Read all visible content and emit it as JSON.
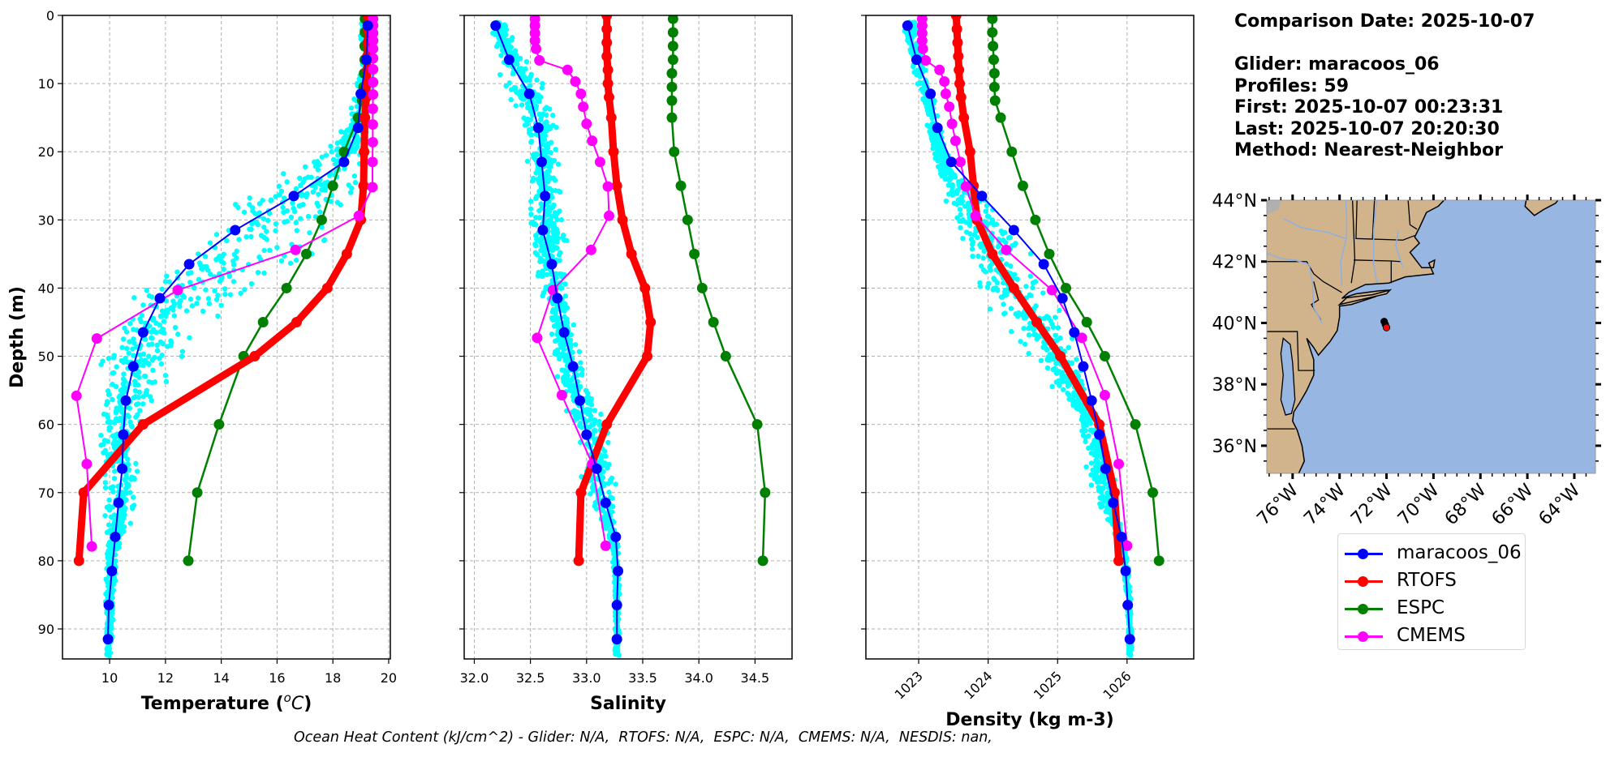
{
  "info": {
    "comparison_date": "Comparison Date: 2025-10-07",
    "glider": "Glider: maracoos_06",
    "profiles": "Profiles: 59",
    "first": "First: 2025-10-07 00:23:31",
    "last": "Last: 2025-10-07 20:20:30",
    "method": "Method: Nearest-Neighbor"
  },
  "footer": "Ocean Heat Content (kJ/cm^2) - Glider: N/A,  RTOFS: N/A,  ESPC: N/A,  CMEMS: N/A,  NESDIS: nan,",
  "legend": [
    {
      "label": "maracoos_06",
      "color": "#0000ff"
    },
    {
      "label": "RTOFS",
      "color": "#ff0000"
    },
    {
      "label": "ESPC",
      "color": "#008000"
    },
    {
      "label": "CMEMS",
      "color": "#ff00ff"
    }
  ],
  "colors": {
    "glider": "#0000ff",
    "glider_scatter": "#00ffff",
    "rtofs": "#ff0000",
    "espc": "#008000",
    "cmems": "#ff00ff",
    "land": "#d2b48c",
    "ocean": "#97b6e1",
    "grid": "#b0b0b0"
  },
  "chart_data": [
    {
      "type": "line",
      "title": "",
      "xlabel": "Temperature (°C)",
      "ylabel": "Depth (m)",
      "xlim": [
        8.31,
        20.06
      ],
      "ylim": [
        94.4,
        0
      ],
      "xticks": [
        10,
        12,
        14,
        16,
        18,
        20
      ],
      "yticks": [
        0,
        10,
        20,
        30,
        40,
        50,
        60,
        70,
        80,
        90
      ],
      "grid": true,
      "series": [
        {
          "name": "maracoos_06",
          "key": "glider",
          "depth": [
            1.5,
            6.5,
            11.5,
            16.5,
            21.5,
            26.5,
            31.5,
            36.5,
            41.5,
            46.5,
            51.5,
            56.5,
            61.5,
            66.5,
            71.5,
            76.5,
            81.5,
            86.5,
            91.5
          ],
          "values": [
            19.25,
            19.2,
            19.0,
            18.9,
            18.4,
            16.6,
            14.5,
            12.85,
            11.8,
            11.2,
            10.85,
            10.58,
            10.49,
            10.45,
            10.32,
            10.2,
            10.08,
            9.97,
            9.94
          ]
        },
        {
          "name": "RTOFS",
          "key": "rtofs",
          "depth": [
            0,
            2,
            4,
            6,
            8,
            10,
            12,
            15,
            20,
            25,
            30,
            35,
            40,
            45,
            50,
            60,
            70,
            80
          ],
          "values": [
            19.25,
            19.25,
            19.25,
            19.24,
            19.24,
            19.23,
            19.2,
            19.15,
            19.12,
            19.1,
            19.0,
            18.5,
            17.8,
            16.7,
            15.2,
            11.2,
            9.07,
            8.9
          ]
        },
        {
          "name": "ESPC",
          "key": "espc",
          "depth": [
            0.5,
            2.5,
            4.5,
            6.5,
            8.5,
            10.5,
            12.5,
            15,
            20,
            25,
            30,
            35,
            40,
            45,
            50,
            60,
            70,
            80
          ],
          "values": [
            19.15,
            19.15,
            19.14,
            19.14,
            19.12,
            19.1,
            19.05,
            18.9,
            18.4,
            18.0,
            17.6,
            17.05,
            16.34,
            15.5,
            14.8,
            13.92,
            13.14,
            12.82
          ]
        },
        {
          "name": "CMEMS",
          "key": "cmems",
          "depth": [
            0.5,
            1.5,
            2.6,
            3.7,
            4.9,
            6.3,
            7.9,
            9.8,
            11.6,
            13.7,
            16,
            18.6,
            21.5,
            25.2,
            29.4,
            34.4,
            40.3,
            47.4,
            55.8,
            65.8,
            77.9
          ],
          "values": [
            19.44,
            19.44,
            19.44,
            19.44,
            19.44,
            19.44,
            19.44,
            19.44,
            19.44,
            19.43,
            19.43,
            19.43,
            19.42,
            19.42,
            18.93,
            16.66,
            12.44,
            9.54,
            8.81,
            9.18,
            9.36
          ]
        }
      ],
      "scatter_band": {
        "depth": [
          3,
          8,
          13,
          18,
          23,
          28,
          33,
          38,
          43,
          48,
          53,
          58,
          63,
          68,
          73,
          78,
          83,
          88,
          93
        ],
        "min": [
          18.9,
          18.9,
          18.6,
          18.0,
          16.0,
          13.5,
          11.8,
          10.6,
          10.0,
          9.6,
          9.4,
          9.3,
          9.4,
          9.6,
          9.7,
          9.8,
          9.8,
          9.8,
          9.8
        ],
        "max": [
          19.5,
          19.5,
          19.5,
          19.4,
          19.3,
          19.2,
          19.0,
          17.0,
          14.5,
          13.0,
          12.5,
          11.5,
          11.2,
          11.2,
          11.1,
          10.4,
          10.3,
          10.2,
          10.1
        ]
      }
    },
    {
      "type": "line",
      "title": "",
      "xlabel": "Salinity",
      "ylabel": "",
      "xlim": [
        31.91,
        34.83
      ],
      "ylim": [
        94.4,
        0
      ],
      "xticks": [
        32.0,
        32.5,
        33.0,
        33.5,
        34.0,
        34.5
      ],
      "xticklabels": [
        "32.0",
        "32.5",
        "33.0",
        "33.5",
        "34.0",
        "34.5"
      ],
      "yticks": [
        0,
        10,
        20,
        30,
        40,
        50,
        60,
        70,
        80,
        90
      ],
      "grid": true,
      "series": [
        {
          "name": "maracoos_06",
          "key": "glider",
          "depth": [
            1.5,
            6.5,
            11.5,
            16.5,
            21.5,
            26.5,
            31.5,
            36.5,
            41.5,
            46.5,
            51.5,
            56.5,
            61.5,
            66.5,
            71.5,
            76.5,
            81.5,
            86.5,
            91.5
          ],
          "values": [
            32.19,
            32.31,
            32.49,
            32.57,
            32.6,
            32.63,
            32.61,
            32.69,
            32.74,
            32.8,
            32.88,
            32.94,
            33.0,
            33.09,
            33.17,
            33.26,
            33.28,
            33.27,
            33.27
          ]
        },
        {
          "name": "RTOFS",
          "key": "rtofs",
          "depth": [
            0,
            2,
            4,
            6,
            8,
            10,
            12,
            15,
            20,
            25,
            30,
            35,
            40,
            45,
            50,
            60,
            70,
            80
          ],
          "values": [
            33.18,
            33.18,
            33.18,
            33.18,
            33.19,
            33.19,
            33.2,
            33.22,
            33.24,
            33.27,
            33.32,
            33.4,
            33.52,
            33.57,
            33.54,
            33.18,
            32.95,
            32.93
          ]
        },
        {
          "name": "ESPC",
          "key": "espc",
          "depth": [
            0.5,
            2.5,
            4.5,
            6.5,
            8.5,
            10.5,
            12.5,
            15,
            20,
            25,
            30,
            35,
            40,
            45,
            50,
            60,
            70,
            80
          ],
          "values": [
            33.77,
            33.77,
            33.77,
            33.77,
            33.76,
            33.76,
            33.76,
            33.76,
            33.78,
            33.84,
            33.9,
            33.96,
            34.03,
            34.13,
            34.24,
            34.52,
            34.59,
            34.57
          ]
        },
        {
          "name": "CMEMS",
          "key": "cmems",
          "depth": [
            0.5,
            1.5,
            2.6,
            3.7,
            4.9,
            6.6,
            8,
            9.7,
            11.5,
            13.4,
            15.9,
            18.4,
            21.5,
            25.1,
            29.4,
            34.4,
            40.3,
            47.3,
            55.7,
            65.8,
            77.8
          ],
          "values": [
            32.54,
            32.54,
            32.54,
            32.54,
            32.55,
            32.58,
            32.83,
            32.9,
            32.95,
            32.97,
            33.0,
            33.05,
            33.12,
            33.19,
            33.2,
            33.04,
            32.7,
            32.56,
            32.78,
            33.05,
            33.17
          ]
        }
      ],
      "scatter_band": {
        "depth": [
          3,
          8,
          13,
          18,
          23,
          28,
          33,
          38,
          43,
          48,
          53,
          58,
          63,
          68,
          73,
          78,
          83,
          88,
          93
        ],
        "min": [
          32.12,
          32.15,
          32.3,
          32.4,
          32.45,
          32.45,
          32.45,
          32.5,
          32.6,
          32.65,
          32.7,
          32.8,
          32.85,
          32.9,
          33.05,
          33.22,
          33.24,
          33.24,
          33.24
        ],
        "max": [
          32.35,
          32.6,
          32.75,
          32.8,
          32.8,
          32.82,
          32.85,
          32.85,
          32.88,
          32.95,
          33.05,
          33.15,
          33.3,
          33.3,
          33.3,
          33.3,
          33.3,
          33.3,
          33.3
        ]
      }
    },
    {
      "type": "line",
      "title": "",
      "xlabel": "Density (kg m-3)",
      "ylabel": "",
      "xlim": [
        1022.24,
        1026.96
      ],
      "ylim": [
        94.4,
        0
      ],
      "xticks": [
        1023,
        1024,
        1025,
        1026
      ],
      "yticks": [
        0,
        10,
        20,
        30,
        40,
        50,
        60,
        70,
        80,
        90
      ],
      "grid": true,
      "series": [
        {
          "name": "maracoos_06",
          "key": "glider",
          "depth": [
            1.5,
            6.5,
            11.5,
            16.5,
            21.5,
            26.5,
            31.5,
            36.5,
            41.5,
            46.5,
            51.5,
            56.5,
            61.5,
            66.5,
            71.5,
            76.5,
            81.5,
            86.5,
            91.5
          ],
          "values": [
            1022.84,
            1022.97,
            1023.17,
            1023.27,
            1023.47,
            1023.91,
            1024.37,
            1024.8,
            1025.07,
            1025.24,
            1025.37,
            1025.49,
            1025.6,
            1025.69,
            1025.8,
            1025.92,
            1025.98,
            1026.01,
            1026.04
          ]
        },
        {
          "name": "RTOFS",
          "key": "rtofs",
          "depth": [
            0,
            2,
            4,
            6,
            8,
            10,
            12,
            15,
            20,
            25,
            30,
            35,
            40,
            45,
            50,
            60,
            70,
            80
          ],
          "values": [
            1023.54,
            1023.55,
            1023.56,
            1023.57,
            1023.58,
            1023.59,
            1023.61,
            1023.65,
            1023.74,
            1023.79,
            1023.84,
            1024.06,
            1024.37,
            1024.7,
            1025.04,
            1025.6,
            1025.82,
            1025.88
          ]
        },
        {
          "name": "ESPC",
          "key": "espc",
          "depth": [
            0.5,
            2.5,
            4.5,
            6.5,
            8.5,
            10.5,
            12.5,
            15,
            20,
            25,
            30,
            35,
            40,
            45,
            50,
            60,
            70,
            80
          ],
          "values": [
            1024.06,
            1024.06,
            1024.07,
            1024.08,
            1024.09,
            1024.09,
            1024.1,
            1024.18,
            1024.34,
            1024.5,
            1024.68,
            1024.88,
            1025.12,
            1025.42,
            1025.68,
            1026.12,
            1026.37,
            1026.46
          ]
        },
        {
          "name": "CMEMS",
          "key": "cmems",
          "depth": [
            0.5,
            1.5,
            2.6,
            3.7,
            4.9,
            6.6,
            8,
            9.7,
            11.5,
            13.4,
            15.9,
            18.4,
            21.5,
            25.1,
            29.4,
            34.4,
            40.3,
            47.3,
            55.7,
            65.8,
            77.8
          ],
          "values": [
            1023.05,
            1023.05,
            1023.05,
            1023.05,
            1023.06,
            1023.1,
            1023.3,
            1023.37,
            1023.39,
            1023.44,
            1023.48,
            1023.53,
            1023.6,
            1023.68,
            1023.82,
            1024.26,
            1024.92,
            1025.35,
            1025.68,
            1025.88,
            1026.0
          ]
        }
      ],
      "scatter_band": {
        "depth": [
          3,
          8,
          13,
          18,
          23,
          28,
          33,
          38,
          43,
          48,
          53,
          58,
          63,
          68,
          73,
          78,
          83,
          88,
          93
        ],
        "min": [
          1022.78,
          1022.85,
          1023.0,
          1023.1,
          1023.2,
          1023.3,
          1023.4,
          1023.55,
          1023.9,
          1024.4,
          1024.8,
          1025.15,
          1025.4,
          1025.4,
          1025.6,
          1025.9,
          1025.95,
          1026.0,
          1026.0
        ],
        "max": [
          1023.0,
          1023.15,
          1023.3,
          1023.4,
          1023.6,
          1024.2,
          1024.6,
          1024.95,
          1025.15,
          1025.3,
          1025.45,
          1025.6,
          1025.75,
          1025.85,
          1025.95,
          1026.0,
          1026.05,
          1026.07,
          1026.08
        ]
      }
    },
    {
      "type": "map",
      "lon_range": [
        -77.1,
        -63.1
      ],
      "lat_range": [
        35.1,
        44.0
      ],
      "lat_ticks": [
        44,
        42,
        40,
        38,
        36
      ],
      "lat_ticklabels": [
        "44°N",
        "42°N",
        "40°N",
        "38°N",
        "36°N"
      ],
      "lon_ticks": [
        -76,
        -74,
        -72,
        -70,
        -68,
        -66,
        -64
      ],
      "lon_ticklabels": [
        "76°W",
        "74°W",
        "72°W",
        "70°W",
        "68°W",
        "66°W",
        "64°W"
      ],
      "glider_track": [
        [
          -72.1,
          40.05
        ],
        [
          -72.05,
          39.95
        ]
      ],
      "glider_position": [
        -72.0,
        39.85
      ]
    }
  ]
}
